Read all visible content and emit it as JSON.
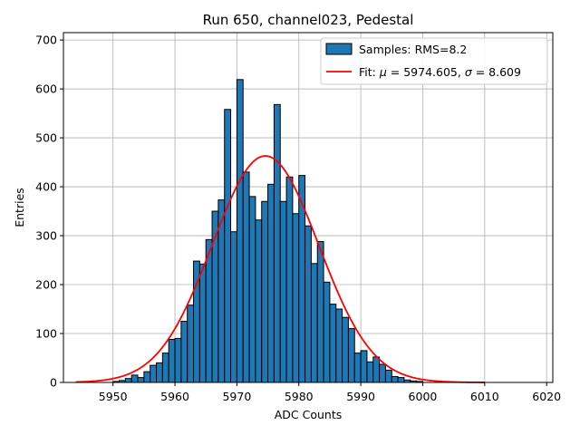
{
  "chart_data": {
    "type": "bar",
    "title": "Run 650, channel023, Pedestal",
    "xlabel": "ADC Counts",
    "ylabel": "Entries",
    "xlim": [
      5942,
      6021
    ],
    "ylim": [
      0,
      715
    ],
    "xticks": [
      5950,
      5960,
      5970,
      5980,
      5990,
      6000,
      6010,
      6020
    ],
    "yticks": [
      0,
      100,
      200,
      300,
      400,
      500,
      600,
      700
    ],
    "grid": true,
    "legend_position": "top-right",
    "colors": {
      "bar": "#1f77b4",
      "bar_edge": "#000000",
      "fit": "#ff0000",
      "grid": "#b0b0b0"
    },
    "series": [
      {
        "name": "Samples: RMS=8.2",
        "kind": "histogram",
        "bin_width": 1,
        "x": [
          5950,
          5951,
          5952,
          5953,
          5954,
          5955,
          5956,
          5957,
          5958,
          5959,
          5960,
          5961,
          5962,
          5963,
          5964,
          5965,
          5966,
          5967,
          5968,
          5969,
          5970,
          5971,
          5972,
          5973,
          5974,
          5975,
          5976,
          5977,
          5978,
          5979,
          5980,
          5981,
          5982,
          5983,
          5984,
          5985,
          5986,
          5987,
          5988,
          5989,
          5990,
          5991,
          5992,
          5993,
          5994,
          5995,
          5996,
          5997,
          5998,
          5999
        ],
        "values": [
          2,
          4,
          8,
          15,
          10,
          22,
          35,
          40,
          60,
          88,
          90,
          125,
          158,
          248,
          242,
          292,
          350,
          373,
          558,
          308,
          619,
          430,
          380,
          332,
          370,
          405,
          568,
          370,
          420,
          345,
          423,
          320,
          243,
          288,
          205,
          160,
          150,
          133,
          110,
          60,
          65,
          42,
          52,
          37,
          25,
          12,
          10,
          5,
          3,
          2
        ]
      },
      {
        "name": "Fit: μ = 5974.605, σ = 8.609",
        "kind": "gaussian",
        "mu": 5974.605,
        "sigma": 8.609,
        "amplitude": 463,
        "x_range": [
          5944,
          6010
        ]
      }
    ],
    "legend": {
      "samples_label": "Samples: RMS=8.2",
      "fit_label_prefix": "Fit: ",
      "mu_symbol": "μ",
      "mu_text": " = 5974.605, ",
      "sigma_symbol": "σ",
      "sigma_text": " = 8.609"
    }
  }
}
